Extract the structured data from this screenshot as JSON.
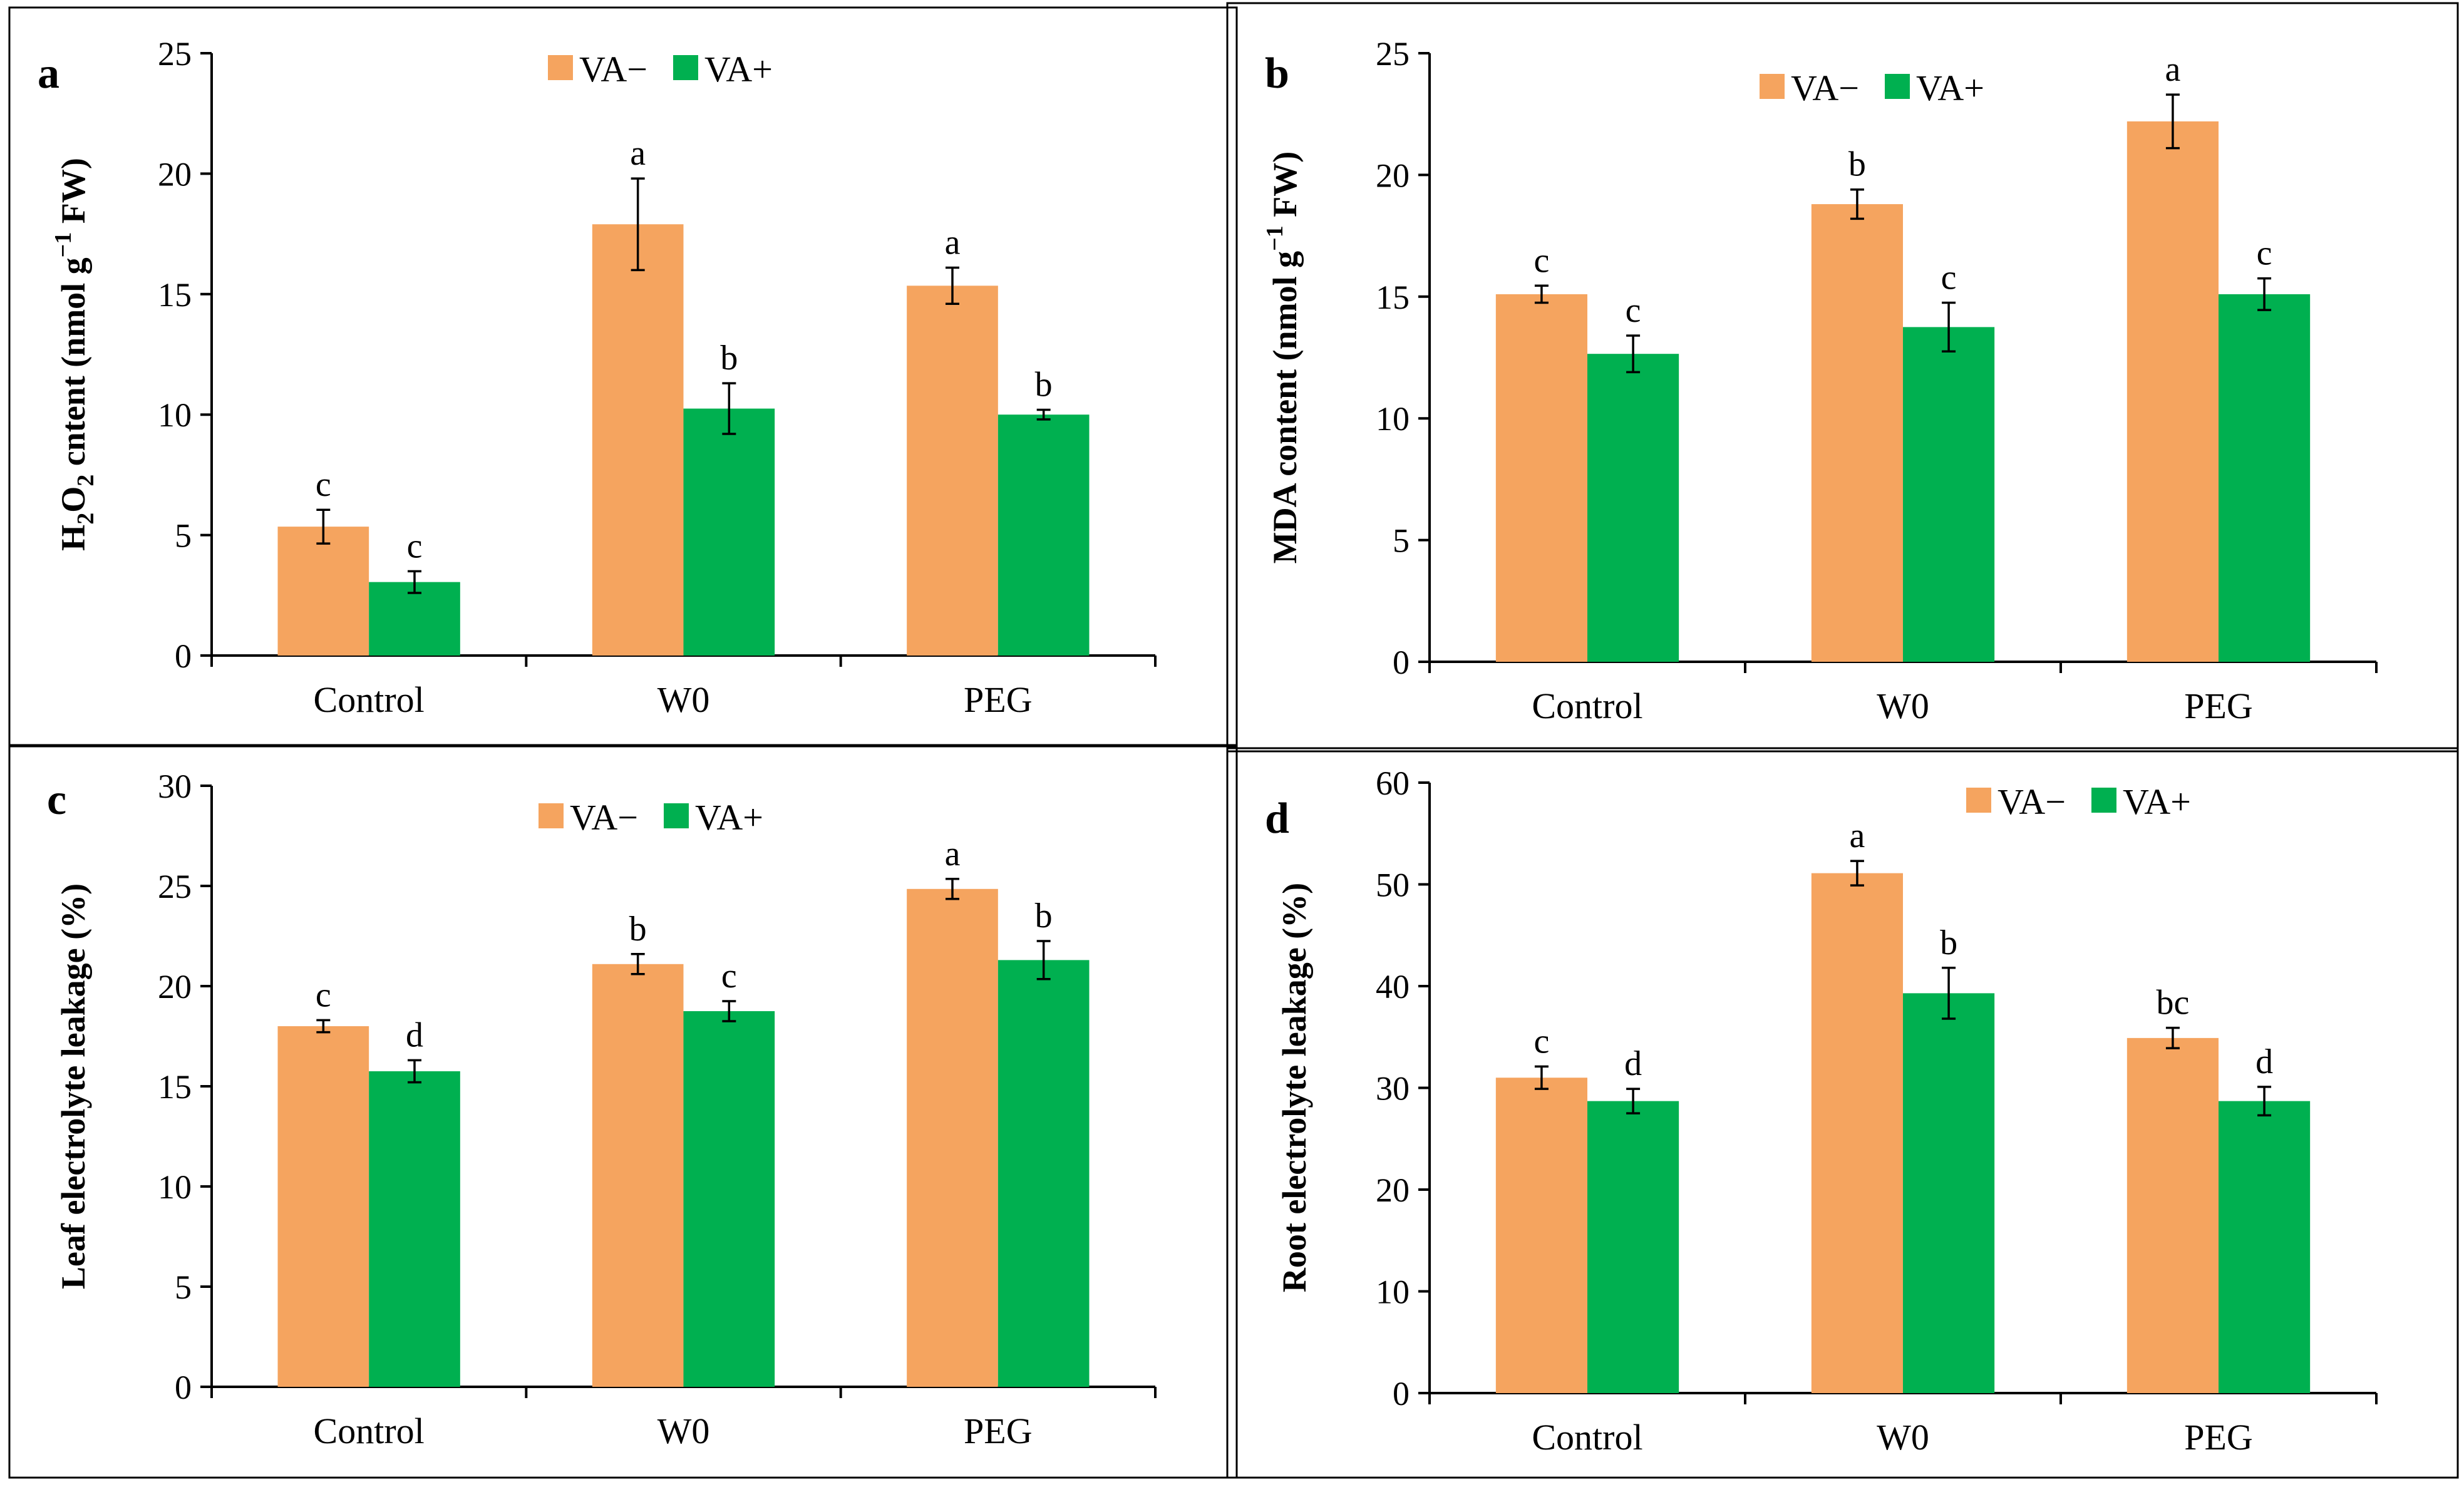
{
  "figure": {
    "colors": {
      "VA-": "#F5A45F",
      "VA+": "#00B050",
      "axis": "#000000",
      "frame": "#000000"
    }
  },
  "chart_data": [
    {
      "type": "bar",
      "panel": "a",
      "categories": [
        "Control",
        "W0",
        "PEG"
      ],
      "series": [
        {
          "name": "VA−",
          "values": [
            5.35,
            17.9,
            15.35
          ],
          "errors": [
            0.7,
            1.9,
            0.75
          ],
          "sig": [
            "c",
            "a",
            "a"
          ]
        },
        {
          "name": "VA+",
          "values": [
            3.05,
            10.25,
            10.0
          ],
          "errors": [
            0.45,
            1.05,
            0.2
          ],
          "sig": [
            "c",
            "b",
            "b"
          ]
        }
      ],
      "ylabel_parts": [
        "H",
        "2",
        "O",
        "2",
        " cntent (nmol g",
        "−1",
        " FW)"
      ],
      "ylim": [
        0,
        25
      ],
      "yticks": [
        0,
        5,
        10,
        15,
        20,
        25
      ],
      "legend": [
        "VA−",
        "VA+"
      ]
    },
    {
      "type": "bar",
      "panel": "b",
      "categories": [
        "Control",
        "W0",
        "PEG"
      ],
      "series": [
        {
          "name": "VA−",
          "values": [
            15.1,
            18.8,
            22.2
          ],
          "errors": [
            0.35,
            0.6,
            1.1
          ],
          "sig": [
            "c",
            "b",
            "a"
          ]
        },
        {
          "name": "VA+",
          "values": [
            12.65,
            13.75,
            15.1
          ],
          "errors": [
            0.75,
            1.0,
            0.65
          ],
          "sig": [
            "c",
            "c",
            "c"
          ]
        }
      ],
      "ylabel_parts": [
        "MDA content (nmol g",
        "−1",
        " FW)"
      ],
      "ylim": [
        0,
        25
      ],
      "yticks": [
        0,
        5,
        10,
        15,
        20,
        25
      ],
      "legend": [
        "VA−",
        "VA+"
      ]
    },
    {
      "type": "bar",
      "panel": "c",
      "categories": [
        "Control",
        "W0",
        "PEG"
      ],
      "series": [
        {
          "name": "VA−",
          "values": [
            18.0,
            21.1,
            24.85
          ],
          "errors": [
            0.3,
            0.5,
            0.5
          ],
          "sig": [
            "c",
            "b",
            "a"
          ]
        },
        {
          "name": "VA+",
          "values": [
            15.75,
            18.75,
            21.3
          ],
          "errors": [
            0.55,
            0.5,
            0.95
          ],
          "sig": [
            "d",
            "c",
            "b"
          ]
        }
      ],
      "ylabel_parts": [
        "Leaf electrolyte leakage (%)"
      ],
      "ylim": [
        0,
        30
      ],
      "yticks": [
        0,
        5,
        10,
        15,
        20,
        25,
        30
      ],
      "legend": [
        "VA−",
        "VA+"
      ]
    },
    {
      "type": "bar",
      "panel": "d",
      "categories": [
        "Control",
        "W0",
        "PEG"
      ],
      "series": [
        {
          "name": "VA−",
          "values": [
            31.0,
            51.1,
            34.9
          ],
          "errors": [
            1.1,
            1.2,
            1.0
          ],
          "sig": [
            "c",
            "a",
            "bc"
          ]
        },
        {
          "name": "VA+",
          "values": [
            28.7,
            39.3,
            28.7
          ],
          "errors": [
            1.2,
            2.5,
            1.4
          ],
          "sig": [
            "d",
            "b",
            "d"
          ]
        }
      ],
      "ylabel_parts": [
        "Root electrolyte leakage (%)"
      ],
      "ylim": [
        0,
        60
      ],
      "yticks": [
        0,
        10,
        20,
        30,
        40,
        50,
        60
      ],
      "legend": [
        "VA−",
        "VA+"
      ]
    }
  ]
}
